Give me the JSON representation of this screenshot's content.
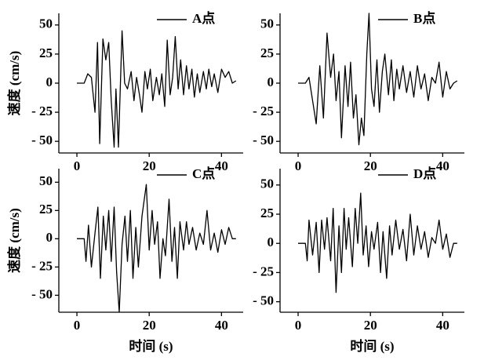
{
  "chart_data": [
    {
      "type": "line",
      "ylabel": "速度 (cm/s)",
      "x": [
        0,
        2,
        3,
        4,
        5,
        5.7,
        6.3,
        7.2,
        8,
        8.8,
        9.5,
        10.3,
        10.8,
        11.5,
        12.5,
        13.2,
        14,
        15,
        15.8,
        16.5,
        17.3,
        18,
        18.8,
        19.5,
        20.3,
        21,
        22,
        22.8,
        23.5,
        24.3,
        25,
        25.8,
        26.5,
        27.2,
        28,
        28.7,
        29.5,
        30.3,
        31,
        31.8,
        32.5,
        33.3,
        34,
        35,
        35.8,
        36.5,
        37.3,
        38,
        39,
        40,
        41,
        42,
        43,
        44
      ],
      "series": [
        {
          "name": "A点",
          "color": "#000000",
          "values": [
            0,
            0,
            8,
            5,
            -25,
            35,
            -52,
            38,
            20,
            35,
            -15,
            -55,
            -5,
            -55,
            45,
            0,
            -5,
            10,
            -15,
            5,
            -10,
            -25,
            10,
            -5,
            12,
            -15,
            5,
            -10,
            8,
            -20,
            37,
            -10,
            5,
            40,
            -5,
            20,
            -10,
            15,
            -5,
            12,
            -12,
            8,
            -8,
            10,
            -5,
            12,
            -3,
            8,
            -8,
            12,
            5,
            10,
            0,
            2
          ]
        }
      ],
      "xlim": [
        -5,
        46
      ],
      "xticks": [
        0,
        20,
        40
      ],
      "ylim": [
        -60,
        60
      ],
      "yticks": [
        50,
        25,
        0,
        {
          "value": -25,
          "label": "- 25"
        },
        {
          "value": -50,
          "label": "- 50"
        }
      ]
    },
    {
      "type": "line",
      "x": [
        0,
        2,
        3,
        4,
        5,
        6,
        7,
        8,
        9,
        9.8,
        10.5,
        11.3,
        12,
        13,
        13.8,
        14.5,
        15.3,
        16,
        16.8,
        17.5,
        18.2,
        19,
        19.6,
        20.3,
        21,
        21.8,
        22.5,
        23.3,
        24,
        25,
        25.8,
        26.5,
        27.3,
        28,
        29,
        30,
        31,
        32,
        33,
        34,
        35,
        36,
        37,
        38,
        39,
        40,
        41,
        42,
        43,
        44
      ],
      "series": [
        {
          "name": "B点",
          "color": "#000000",
          "values": [
            0,
            0,
            5,
            -15,
            -35,
            15,
            -30,
            43,
            5,
            25,
            -15,
            10,
            -47,
            15,
            -20,
            18,
            -30,
            -10,
            -53,
            -30,
            -45,
            25,
            60,
            -5,
            -20,
            20,
            -25,
            10,
            25,
            -10,
            20,
            -15,
            12,
            -5,
            15,
            -8,
            10,
            -12,
            15,
            -5,
            8,
            -15,
            5,
            0,
            18,
            -12,
            10,
            -5,
            0,
            2
          ]
        }
      ],
      "xlim": [
        -5,
        46
      ],
      "xticks": [
        0,
        20,
        40
      ],
      "ylim": [
        -60,
        60
      ],
      "yticks": [
        50,
        25,
        0,
        {
          "value": -25,
          "label": "- 25"
        },
        {
          "value": -50,
          "label": "- 50"
        }
      ]
    },
    {
      "type": "line",
      "ylabel": "速度 (cm/s)",
      "xlabel": "时间 (s)",
      "x": [
        0,
        2,
        2.5,
        3.2,
        4,
        5,
        5.8,
        6.5,
        7.3,
        8,
        8.8,
        9.5,
        10.3,
        11,
        11.7,
        12.5,
        13.3,
        14,
        14.8,
        15.5,
        16.3,
        17,
        18,
        19.2,
        20,
        20.8,
        21.5,
        22.3,
        23,
        23.8,
        24.5,
        25.5,
        26.3,
        27,
        27.8,
        28.5,
        29.5,
        30.3,
        31,
        32,
        33,
        34,
        35,
        36,
        37,
        38,
        39,
        40,
        41,
        42,
        43,
        44
      ],
      "series": [
        {
          "name": "C点",
          "color": "#000000",
          "values": [
            0,
            0,
            -20,
            12,
            -25,
            5,
            28,
            -35,
            20,
            -10,
            25,
            -20,
            28,
            -30,
            -65,
            -5,
            20,
            -20,
            25,
            -35,
            10,
            -25,
            20,
            48,
            -10,
            25,
            -5,
            15,
            -35,
            0,
            -15,
            35,
            -20,
            10,
            -35,
            15,
            -10,
            15,
            -5,
            10,
            -10,
            5,
            -5,
            25,
            -10,
            5,
            -12,
            8,
            -5,
            10,
            0,
            0
          ]
        }
      ],
      "xlim": [
        -5,
        46
      ],
      "xticks": [
        0,
        20,
        40
      ],
      "ylim": [
        -65,
        62
      ],
      "yticks": [
        50,
        25,
        0,
        {
          "value": -25,
          "label": "- 25"
        },
        {
          "value": -50,
          "label": "- 50"
        }
      ]
    },
    {
      "type": "line",
      "xlabel": "时间 (s)",
      "x": [
        0,
        2,
        2.5,
        3,
        4,
        5,
        5.8,
        6.5,
        7.3,
        8,
        9,
        9.7,
        10.5,
        11.3,
        12,
        12.7,
        13.3,
        14,
        15,
        15.8,
        16.5,
        17.3,
        18,
        18.8,
        19.5,
        20.3,
        21,
        22,
        22.8,
        23.5,
        24.5,
        25.3,
        26,
        27,
        28,
        29,
        30,
        31,
        32,
        33,
        34,
        35,
        36,
        37,
        38,
        39,
        40,
        41,
        42,
        43,
        44
      ],
      "series": [
        {
          "name": "D点",
          "color": "#000000",
          "values": [
            0,
            0,
            -15,
            20,
            -10,
            18,
            -25,
            20,
            -5,
            22,
            -15,
            30,
            -42,
            15,
            -25,
            30,
            -5,
            22,
            -20,
            30,
            0,
            43,
            -10,
            15,
            -20,
            10,
            -5,
            18,
            -25,
            10,
            -30,
            15,
            -10,
            20,
            -5,
            12,
            -15,
            25,
            -10,
            15,
            -5,
            10,
            -12,
            5,
            0,
            20,
            -5,
            8,
            -12,
            0,
            0
          ]
        }
      ],
      "xlim": [
        -5,
        46
      ],
      "xticks": [
        0,
        20,
        40
      ],
      "ylim": [
        -59,
        64
      ],
      "yticks": [
        50,
        25,
        0,
        {
          "value": -25,
          "label": "- 25"
        },
        {
          "value": -50,
          "label": "- 50"
        }
      ]
    }
  ]
}
